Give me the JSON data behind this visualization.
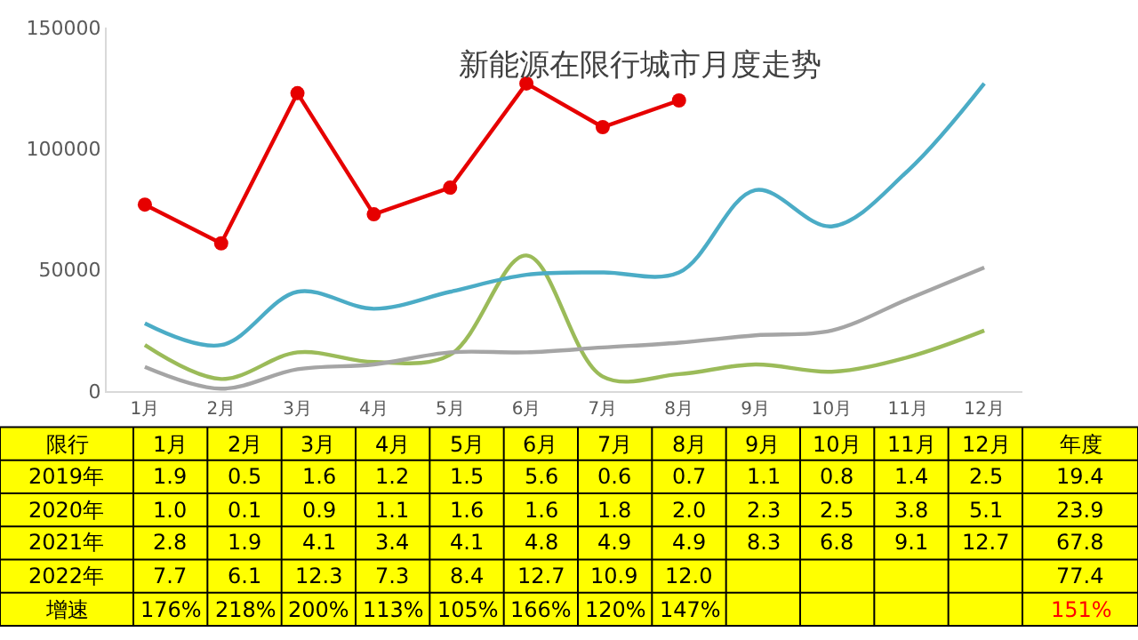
{
  "chart_data": {
    "type": "line",
    "title": "新能源在限行城市月度走势",
    "categories": [
      "1月",
      "2月",
      "3月",
      "4月",
      "5月",
      "6月",
      "7月",
      "8月",
      "9月",
      "10月",
      "11月",
      "12月"
    ],
    "series": [
      {
        "color": "#9bbb59",
        "marker": "none",
        "values": [
          19000,
          5000,
          16000,
          12000,
          15000,
          56000,
          6000,
          7000,
          11000,
          8000,
          14000,
          25000
        ]
      },
      {
        "color": "#a5a5a5",
        "marker": "none",
        "values": [
          10000,
          1000,
          9000,
          11000,
          16000,
          16000,
          18000,
          20000,
          23000,
          25000,
          38000,
          51000
        ]
      },
      {
        "color": "#4bacc6",
        "marker": "none",
        "values": [
          28000,
          19000,
          41000,
          34000,
          41000,
          48000,
          49000,
          49000,
          83000,
          68000,
          91000,
          127000
        ]
      },
      {
        "color": "#e60000",
        "marker": "circle",
        "values": [
          77000,
          61000,
          123000,
          73000,
          84000,
          127000,
          109000,
          120000,
          null,
          null,
          null,
          null
        ]
      }
    ],
    "ylim": [
      0,
      150000
    ],
    "yticks": [
      0,
      50000,
      100000,
      150000
    ],
    "legend": false,
    "annotations": [
      "限行",
      "年度",
      "2019年",
      "1.9",
      "0.5",
      "1.6",
      "1.2",
      "1.5",
      "5.6",
      "0.6",
      "0.7",
      "1.1",
      "0.8",
      "1.4",
      "2.5",
      "19.4",
      "2020年",
      "1.0",
      "0.1",
      "0.9",
      "1.1",
      "1.6",
      "1.6",
      "1.8",
      "2.0",
      "2.3",
      "2.5",
      "3.8",
      "5.1",
      "23.9",
      "2021年",
      "2.8",
      "1.9",
      "4.1",
      "3.4",
      "4.1",
      "4.8",
      "4.9",
      "4.9",
      "8.3",
      "6.8",
      "9.1",
      "12.7",
      "67.8",
      "2022年",
      "7.7",
      "6.1",
      "12.3",
      "7.3",
      "8.4",
      "12.7",
      "10.9",
      "12.0",
      "77.4",
      "增速",
      "176%",
      "218%",
      "200%",
      "113%",
      "105%",
      "166%",
      "120%",
      "147%",
      "151%"
    ]
  }
}
